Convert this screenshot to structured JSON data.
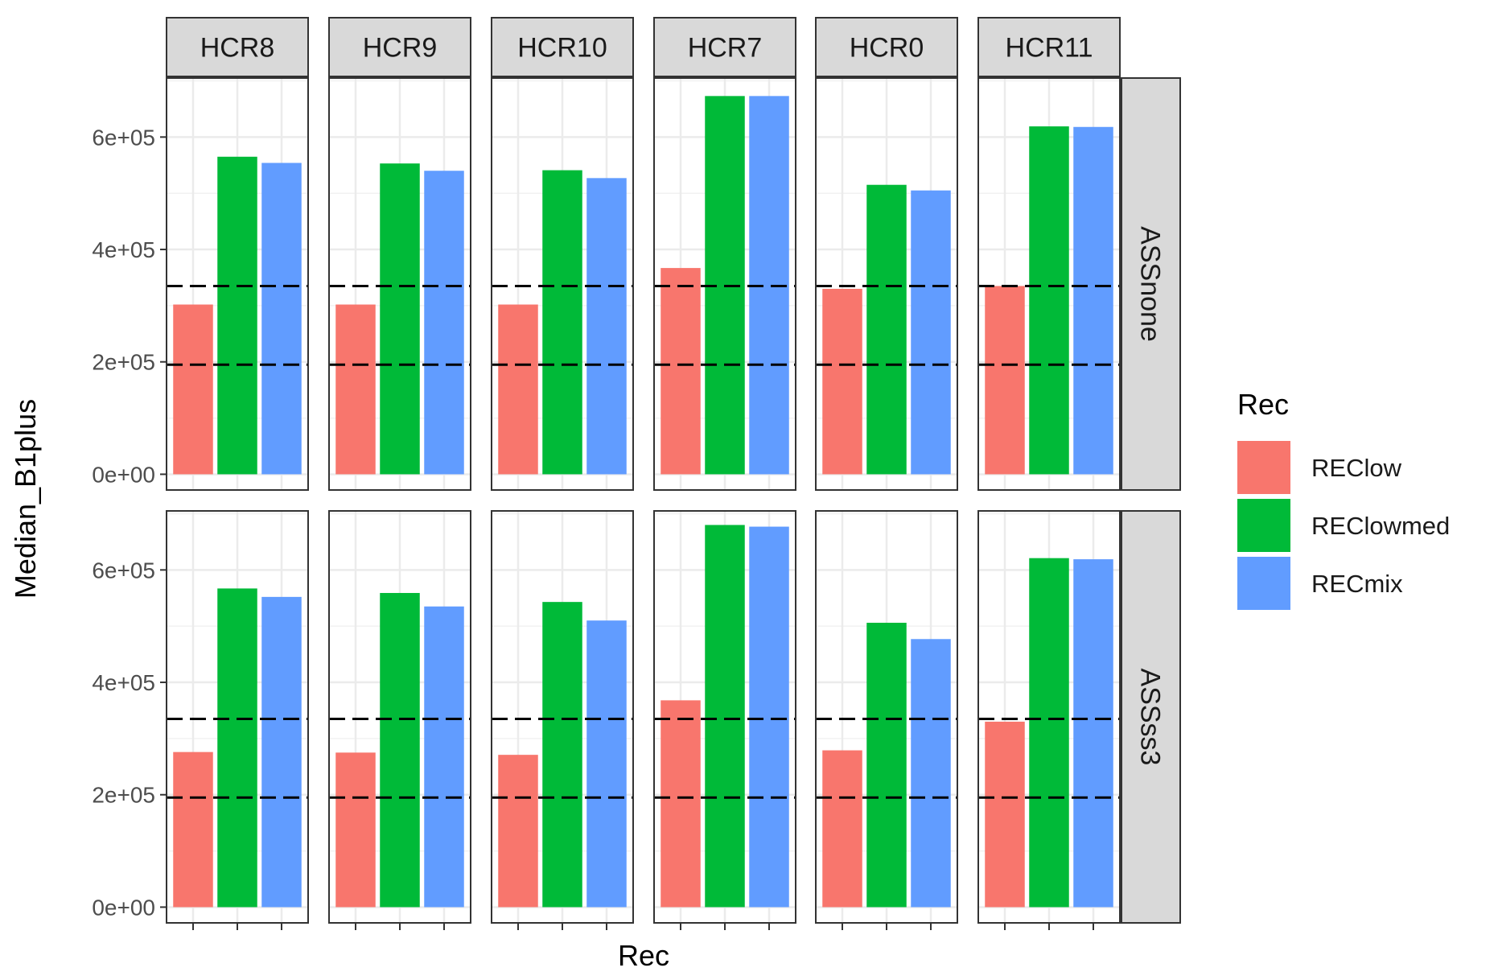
{
  "chart_data": {
    "type": "bar",
    "ylabel": "Median_B1plus",
    "xlabel": "Rec",
    "ylim": [
      -28000,
      705000
    ],
    "yticks": [
      0,
      200000,
      400000,
      600000
    ],
    "ytick_labels": [
      "0e+00",
      "2e+05",
      "4e+05",
      "6e+05"
    ],
    "grid": true,
    "legend_position": "right",
    "legend": {
      "title": "Rec",
      "items": [
        {
          "label": "REClow",
          "color": "#F8766D"
        },
        {
          "label": "REClowmed",
          "color": "#00BA38"
        },
        {
          "label": "RECmix",
          "color": "#619CFF"
        }
      ]
    },
    "facet_columns": [
      "HCR8",
      "HCR9",
      "HCR10",
      "HCR7",
      "HCR0",
      "HCR11"
    ],
    "facet_rows": [
      "ASSnone",
      "ASSss3"
    ],
    "categories": [
      "REClow",
      "REClowmed",
      "RECmix"
    ],
    "reference_lines": [
      335000,
      195000
    ],
    "values": {
      "ASSnone": {
        "HCR8": [
          302000,
          565000,
          554000
        ],
        "HCR9": [
          302000,
          553000,
          540000
        ],
        "HCR10": [
          302000,
          541000,
          527000
        ],
        "HCR7": [
          367000,
          673000,
          673000
        ],
        "HCR0": [
          330000,
          515000,
          505000
        ],
        "HCR11": [
          335000,
          619000,
          618000
        ]
      },
      "ASSss3": {
        "HCR8": [
          276000,
          567000,
          552000
        ],
        "HCR9": [
          275000,
          559000,
          535000
        ],
        "HCR10": [
          271000,
          543000,
          510000
        ],
        "HCR7": [
          368000,
          680000,
          677000
        ],
        "HCR0": [
          279000,
          506000,
          477000
        ],
        "HCR11": [
          330000,
          621000,
          619000
        ]
      }
    }
  }
}
